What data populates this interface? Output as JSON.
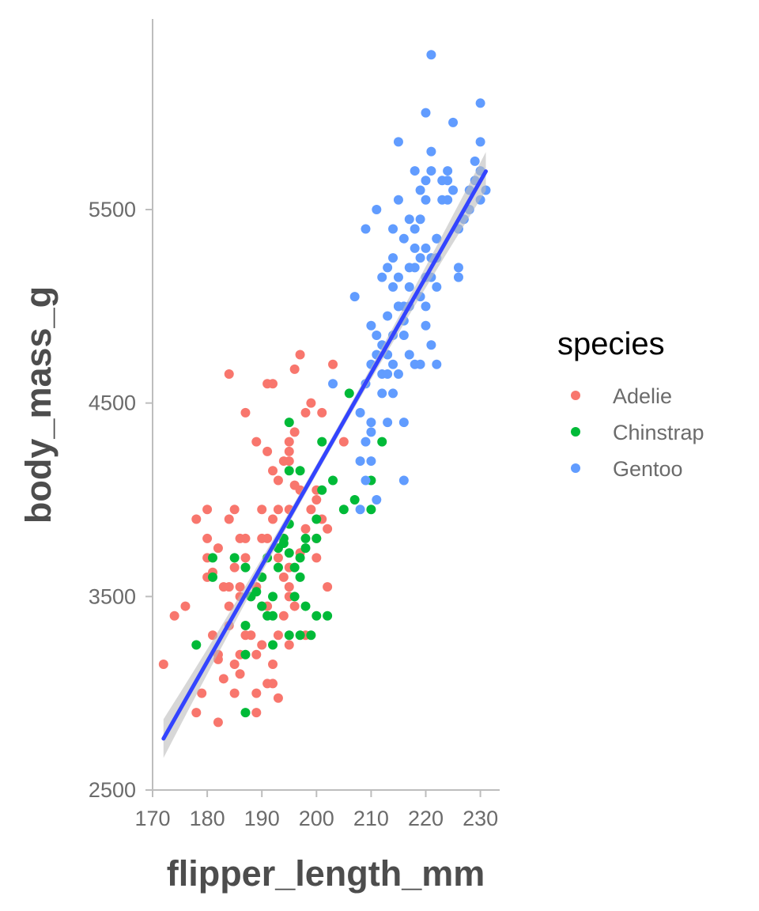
{
  "chart_data": {
    "type": "scatter",
    "xlabel": "flipper_length_mm",
    "ylabel": "body_mass_g",
    "xlim": [
      170,
      232
    ],
    "ylim": [
      2500,
      6320
    ],
    "x_ticks": [
      170,
      180,
      190,
      200,
      210,
      220,
      230
    ],
    "y_ticks": [
      2500,
      3500,
      4500,
      5500
    ],
    "grid": false,
    "legend": {
      "title": "species",
      "placement": "right",
      "entries": [
        {
          "name": "Adelie",
          "color": "#F8766D"
        },
        {
          "name": "Chinstrap",
          "color": "#00BA38"
        },
        {
          "name": "Gentoo",
          "color": "#619CFF"
        }
      ]
    },
    "series": [
      {
        "name": "Adelie",
        "color": "#F8766D",
        "points": [
          [
            172,
            3150
          ],
          [
            174,
            3400
          ],
          [
            176,
            3450
          ],
          [
            178,
            3900
          ],
          [
            178,
            2900
          ],
          [
            179,
            3000
          ],
          [
            180,
            3950
          ],
          [
            180,
            3600
          ],
          [
            180,
            3700
          ],
          [
            180,
            3800
          ],
          [
            181,
            3300
          ],
          [
            181,
            3625
          ],
          [
            182,
            3750
          ],
          [
            182,
            3175
          ],
          [
            182,
            3200
          ],
          [
            182,
            2850
          ],
          [
            183,
            3550
          ],
          [
            183,
            3075
          ],
          [
            184,
            3550
          ],
          [
            184,
            3450
          ],
          [
            184,
            3900
          ],
          [
            184,
            4650
          ],
          [
            184,
            3350
          ],
          [
            185,
            3950
          ],
          [
            185,
            3150
          ],
          [
            185,
            3650
          ],
          [
            185,
            3000
          ],
          [
            186,
            3550
          ],
          [
            186,
            3800
          ],
          [
            186,
            3100
          ],
          [
            186,
            3500
          ],
          [
            186,
            3200
          ],
          [
            187,
            4450
          ],
          [
            187,
            3300
          ],
          [
            187,
            3800
          ],
          [
            187,
            3700
          ],
          [
            188,
            3300
          ],
          [
            188,
            3500
          ],
          [
            189,
            4300
          ],
          [
            189,
            3550
          ],
          [
            189,
            3200
          ],
          [
            189,
            3000
          ],
          [
            189,
            2900
          ],
          [
            190,
            3450
          ],
          [
            190,
            3800
          ],
          [
            190,
            3950
          ],
          [
            190,
            3600
          ],
          [
            190,
            3250
          ],
          [
            191,
            3800
          ],
          [
            191,
            4250
          ],
          [
            191,
            3050
          ],
          [
            191,
            4600
          ],
          [
            191,
            3450
          ],
          [
            192,
            3050
          ],
          [
            192,
            3900
          ],
          [
            192,
            4600
          ],
          [
            192,
            3150
          ],
          [
            192,
            4150
          ],
          [
            193,
            3950
          ],
          [
            193,
            4100
          ],
          [
            193,
            3700
          ],
          [
            193,
            3300
          ],
          [
            193,
            2975
          ],
          [
            194,
            3600
          ],
          [
            194,
            3400
          ],
          [
            194,
            3800
          ],
          [
            194,
            4200
          ],
          [
            195,
            4250
          ],
          [
            195,
            4200
          ],
          [
            195,
            3950
          ],
          [
            195,
            3650
          ],
          [
            195,
            3550
          ],
          [
            195,
            4300
          ],
          [
            195,
            3500
          ],
          [
            195,
            3250
          ],
          [
            196,
            4675
          ],
          [
            196,
            4350
          ],
          [
            196,
            3450
          ],
          [
            196,
            4075
          ],
          [
            197,
            4750
          ],
          [
            197,
            4050
          ],
          [
            197,
            3725
          ],
          [
            198,
            4450
          ],
          [
            198,
            3850
          ],
          [
            198,
            3300
          ],
          [
            199,
            4500
          ],
          [
            199,
            3950
          ],
          [
            200,
            4050
          ],
          [
            200,
            4000
          ],
          [
            200,
            3700
          ],
          [
            200,
            3800
          ],
          [
            201,
            3900
          ],
          [
            201,
            4450
          ],
          [
            202,
            3550
          ],
          [
            202,
            3850
          ],
          [
            203,
            4700
          ],
          [
            205,
            4300
          ]
        ]
      },
      {
        "name": "Chinstrap",
        "color": "#00BA38",
        "points": [
          [
            178,
            3250
          ],
          [
            181,
            3700
          ],
          [
            181,
            3600
          ],
          [
            185,
            3700
          ],
          [
            187,
            2900
          ],
          [
            187,
            3200
          ],
          [
            187,
            3350
          ],
          [
            187,
            3650
          ],
          [
            188,
            3500
          ],
          [
            189,
            3525
          ],
          [
            190,
            3450
          ],
          [
            190,
            3600
          ],
          [
            191,
            3400
          ],
          [
            191,
            3700
          ],
          [
            192,
            3500
          ],
          [
            192,
            3250
          ],
          [
            192,
            3400
          ],
          [
            193,
            3650
          ],
          [
            193,
            3750
          ],
          [
            194,
            3800
          ],
          [
            194,
            3775
          ],
          [
            195,
            4400
          ],
          [
            195,
            3300
          ],
          [
            195,
            3725
          ],
          [
            195,
            4150
          ],
          [
            195,
            3875
          ],
          [
            196,
            3650
          ],
          [
            196,
            3500
          ],
          [
            197,
            3300
          ],
          [
            197,
            3700
          ],
          [
            197,
            4150
          ],
          [
            197,
            3600
          ],
          [
            198,
            3750
          ],
          [
            198,
            3800
          ],
          [
            198,
            3450
          ],
          [
            199,
            3300
          ],
          [
            200,
            3400
          ],
          [
            200,
            3800
          ],
          [
            200,
            3900
          ],
          [
            201,
            4300
          ],
          [
            201,
            4050
          ],
          [
            202,
            3400
          ],
          [
            203,
            4100
          ],
          [
            205,
            3950
          ],
          [
            206,
            4550
          ],
          [
            207,
            4000
          ],
          [
            210,
            3950
          ],
          [
            210,
            4100
          ],
          [
            212,
            4300
          ]
        ]
      },
      {
        "name": "Gentoo",
        "color": "#619CFF",
        "points": [
          [
            203,
            4600
          ],
          [
            207,
            5050
          ],
          [
            208,
            4450
          ],
          [
            208,
            4200
          ],
          [
            209,
            5400
          ],
          [
            209,
            4300
          ],
          [
            209,
            4600
          ],
          [
            210,
            4900
          ],
          [
            210,
            4400
          ],
          [
            210,
            4350
          ],
          [
            210,
            4700
          ],
          [
            211,
            4850
          ],
          [
            211,
            4750
          ],
          [
            212,
            4800
          ],
          [
            212,
            4650
          ],
          [
            213,
            4950
          ],
          [
            213,
            4750
          ],
          [
            213,
            5200
          ],
          [
            214,
            5400
          ],
          [
            214,
            4700
          ],
          [
            214,
            5250
          ],
          [
            214,
            5100
          ],
          [
            215,
            5850
          ],
          [
            215,
            5550
          ],
          [
            215,
            4650
          ],
          [
            215,
            5000
          ],
          [
            216,
            5000
          ],
          [
            216,
            4850
          ],
          [
            216,
            4925
          ],
          [
            216,
            5350
          ],
          [
            217,
            4750
          ],
          [
            217,
            5200
          ],
          [
            217,
            5450
          ],
          [
            218,
            4700
          ],
          [
            218,
            5200
          ],
          [
            218,
            5300
          ],
          [
            219,
            5250
          ],
          [
            219,
            5600
          ],
          [
            219,
            5050
          ],
          [
            220,
            5150
          ],
          [
            220,
            5300
          ],
          [
            220,
            5550
          ],
          [
            220,
            4900
          ],
          [
            220,
            5000
          ],
          [
            221,
            5700
          ],
          [
            221,
            5800
          ],
          [
            221,
            5250
          ],
          [
            221,
            4800
          ],
          [
            222,
            5100
          ],
          [
            222,
            5350
          ],
          [
            222,
            5250
          ],
          [
            223,
            5550
          ],
          [
            224,
            5700
          ],
          [
            224,
            5650
          ],
          [
            225,
            5950
          ],
          [
            226,
            5400
          ],
          [
            228,
            5500
          ],
          [
            229,
            5750
          ],
          [
            230,
            6050
          ],
          [
            230,
            5700
          ],
          [
            230,
            5550
          ],
          [
            212,
            5150
          ],
          [
            214,
            4850
          ],
          [
            216,
            4400
          ],
          [
            217,
            5100
          ],
          [
            218,
            5400
          ],
          [
            220,
            5650
          ],
          [
            222,
            4700
          ],
          [
            209,
            4100
          ],
          [
            210,
            4200
          ],
          [
            211,
            5500
          ],
          [
            215,
            5150
          ],
          [
            219,
            5450
          ],
          [
            223,
            5650
          ],
          [
            225,
            5600
          ],
          [
            226,
            5200
          ],
          [
            228,
            5600
          ],
          [
            213,
            4400
          ],
          [
            208,
            3950
          ],
          [
            221,
            6300
          ],
          [
            229,
            5650
          ],
          [
            231,
            5600
          ],
          [
            211,
            4000
          ],
          [
            212,
            4550
          ],
          [
            215,
            5000
          ],
          [
            217,
            5000
          ],
          [
            220,
            6000
          ],
          [
            218,
            5700
          ],
          [
            214,
            4550
          ],
          [
            222,
            5350
          ],
          [
            227,
            5450
          ],
          [
            216,
            4100
          ],
          [
            213,
            4650
          ],
          [
            219,
            4700
          ],
          [
            221,
            5150
          ],
          [
            224,
            5550
          ],
          [
            226,
            5150
          ],
          [
            230,
            5850
          ]
        ]
      }
    ],
    "fit": {
      "method": "linear regression with confidence band",
      "color": "#3344FF",
      "band_color": "#BDBDBD",
      "x_range": [
        172,
        231
      ],
      "slope": 49.69,
      "intercept": -5780.83,
      "band_halfwidth_ends": 100,
      "band_halfwidth_center": 25
    }
  }
}
